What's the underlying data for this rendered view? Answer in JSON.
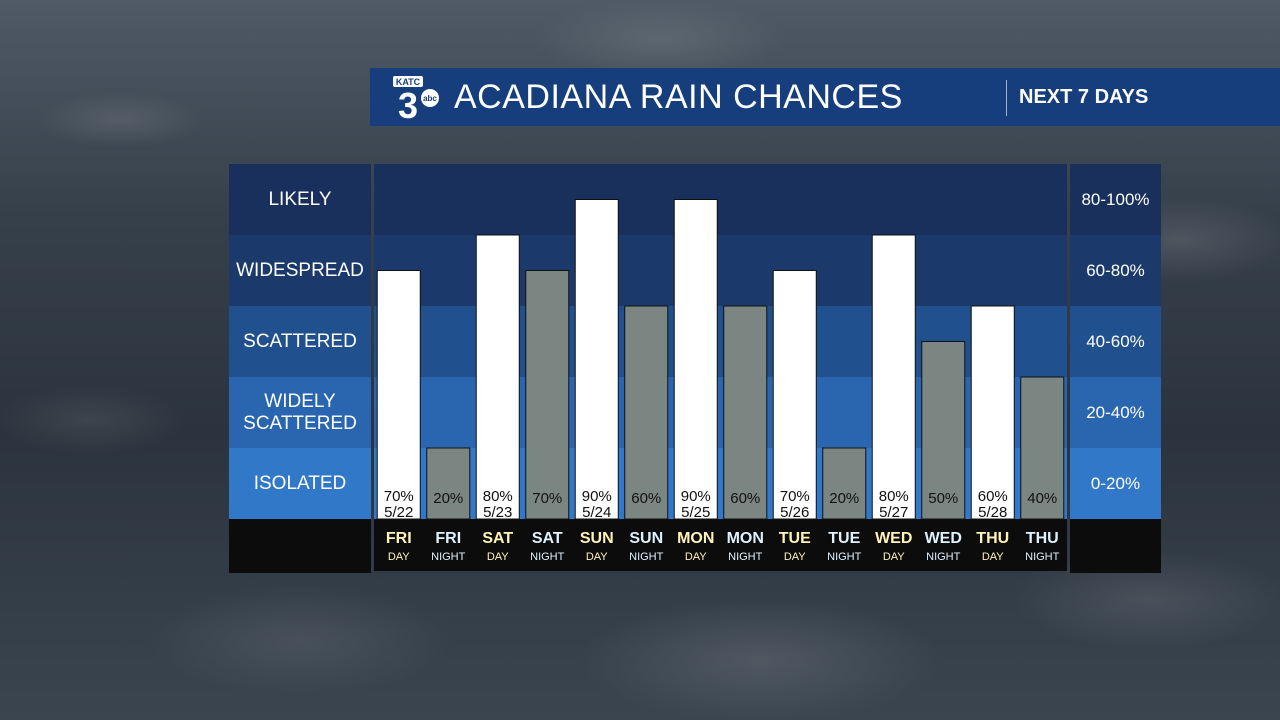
{
  "header": {
    "title": "ACADIANA RAIN CHANCES",
    "subtitle": "NEXT 7 DAYS",
    "logo_text": "KATC",
    "logo_number": "3",
    "logo_badge": "abc"
  },
  "bands": [
    {
      "label": "LIKELY",
      "range": "80-100%",
      "color": "#18305b"
    },
    {
      "label": "WIDESPREAD",
      "range": "60-80%",
      "color": "#1b3a6b"
    },
    {
      "label": "SCATTERED",
      "range": "40-60%",
      "color": "#21508e"
    },
    {
      "label": "WIDELY SCATTERED",
      "range": "20-40%",
      "color": "#2a65b0"
    },
    {
      "label": "ISOLATED",
      "range": "0-20%",
      "color": "#3278c8"
    }
  ],
  "colors": {
    "day_bar": "#ffffff",
    "night_bar": "#7b8682",
    "day_label": "#fff3b8",
    "night_label": "#dff2ff",
    "footer": "#0c0c0c"
  },
  "chart_data": {
    "type": "bar",
    "ylim": [
      0,
      100
    ],
    "bars": [
      {
        "day": "FRI",
        "period": "DAY",
        "value": 70,
        "label": "70%",
        "date": "5/22"
      },
      {
        "day": "FRI",
        "period": "NIGHT",
        "value": 20,
        "label": "20%",
        "date": ""
      },
      {
        "day": "SAT",
        "period": "DAY",
        "value": 80,
        "label": "80%",
        "date": "5/23"
      },
      {
        "day": "SAT",
        "period": "NIGHT",
        "value": 70,
        "label": "70%",
        "date": ""
      },
      {
        "day": "SUN",
        "period": "DAY",
        "value": 90,
        "label": "90%",
        "date": "5/24"
      },
      {
        "day": "SUN",
        "period": "NIGHT",
        "value": 60,
        "label": "60%",
        "date": ""
      },
      {
        "day": "MON",
        "period": "DAY",
        "value": 90,
        "label": "90%",
        "date": "5/25"
      },
      {
        "day": "MON",
        "period": "NIGHT",
        "value": 60,
        "label": "60%",
        "date": ""
      },
      {
        "day": "TUE",
        "period": "DAY",
        "value": 70,
        "label": "70%",
        "date": "5/26"
      },
      {
        "day": "TUE",
        "period": "NIGHT",
        "value": 20,
        "label": "20%",
        "date": ""
      },
      {
        "day": "WED",
        "period": "DAY",
        "value": 80,
        "label": "80%",
        "date": "5/27"
      },
      {
        "day": "WED",
        "period": "NIGHT",
        "value": 50,
        "label": "50%",
        "date": ""
      },
      {
        "day": "THU",
        "period": "DAY",
        "value": 60,
        "label": "60%",
        "date": "5/28"
      },
      {
        "day": "THU",
        "period": "NIGHT",
        "value": 40,
        "label": "40%",
        "date": ""
      }
    ]
  }
}
